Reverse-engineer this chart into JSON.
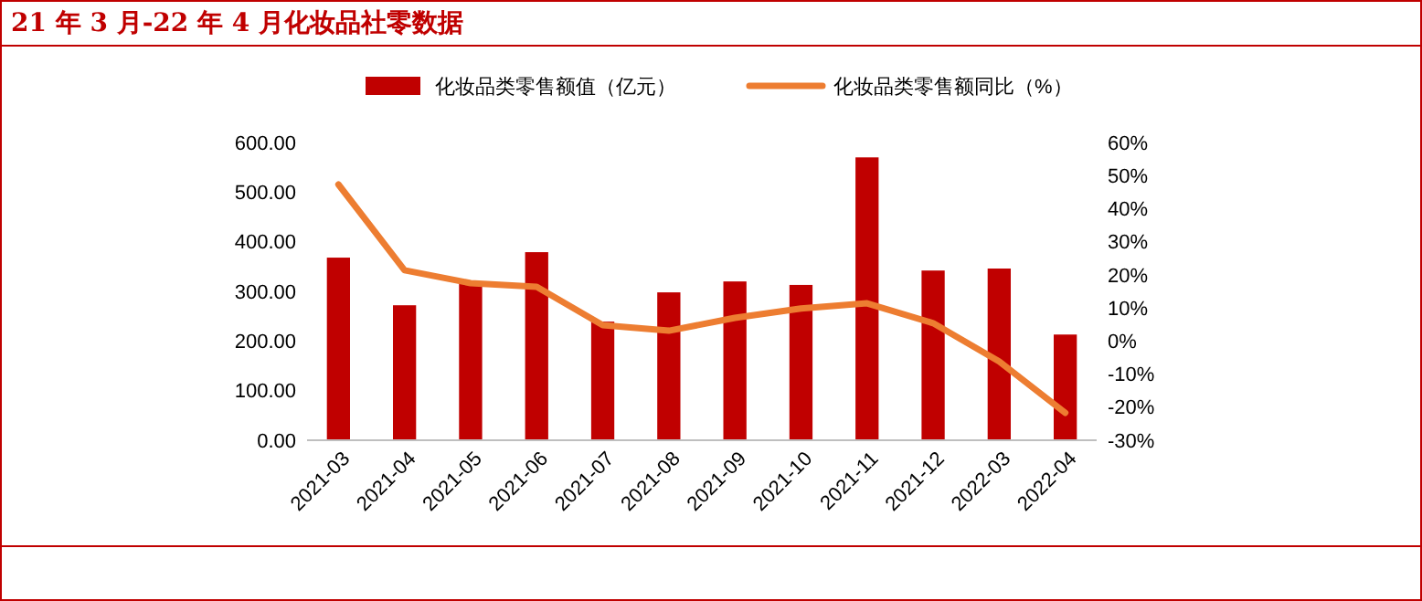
{
  "chart_data": {
    "type": "bar",
    "title": "21 年 3 月-22 年 4 月化妆品社零数据",
    "categories": [
      "2021-03",
      "2021-04",
      "2021-05",
      "2021-06",
      "2021-07",
      "2021-08",
      "2021-09",
      "2021-10",
      "2021-11",
      "2021-12",
      "2022-03",
      "2022-04"
    ],
    "series": [
      {
        "name": "化妆品类零售额值（亿元）",
        "color": "#c00000",
        "values": [
          368,
          272,
          318,
          379,
          239,
          298,
          320,
          313,
          570,
          342,
          346,
          213
        ]
      },
      {
        "name": "化妆品类零售额同比（%）",
        "type": "line",
        "axis": "y2",
        "color": "#ed7d31",
        "values": [
          47.3,
          21.4,
          17.5,
          16.4,
          4.8,
          3.1,
          7,
          9.8,
          11.4,
          5.4,
          -6.2,
          -21.7
        ]
      }
    ],
    "ylim": [
      0,
      600
    ],
    "yticks": [
      {
        "value": 0,
        "label": "0.00"
      },
      {
        "value": 100,
        "label": "100.00"
      },
      {
        "value": 200,
        "label": "200.00"
      },
      {
        "value": 300,
        "label": "300.00"
      },
      {
        "value": 400,
        "label": "400.00"
      },
      {
        "value": 500,
        "label": "500.00"
      },
      {
        "value": 600,
        "label": "600.00"
      }
    ],
    "y2lim": [
      -30,
      60
    ],
    "y2ticks": [
      {
        "value": -30,
        "label": "-30%"
      },
      {
        "value": -20,
        "label": "-20%"
      },
      {
        "value": -10,
        "label": "-10%"
      },
      {
        "value": 0,
        "label": "0%"
      },
      {
        "value": 10,
        "label": "10%"
      },
      {
        "value": 20,
        "label": "20%"
      },
      {
        "value": 30,
        "label": "30%"
      },
      {
        "value": 40,
        "label": "40%"
      },
      {
        "value": 50,
        "label": "50%"
      },
      {
        "value": 60,
        "label": "60%"
      }
    ],
    "legend": "top",
    "grid": false,
    "marker": "none",
    "line_style": "solid"
  }
}
